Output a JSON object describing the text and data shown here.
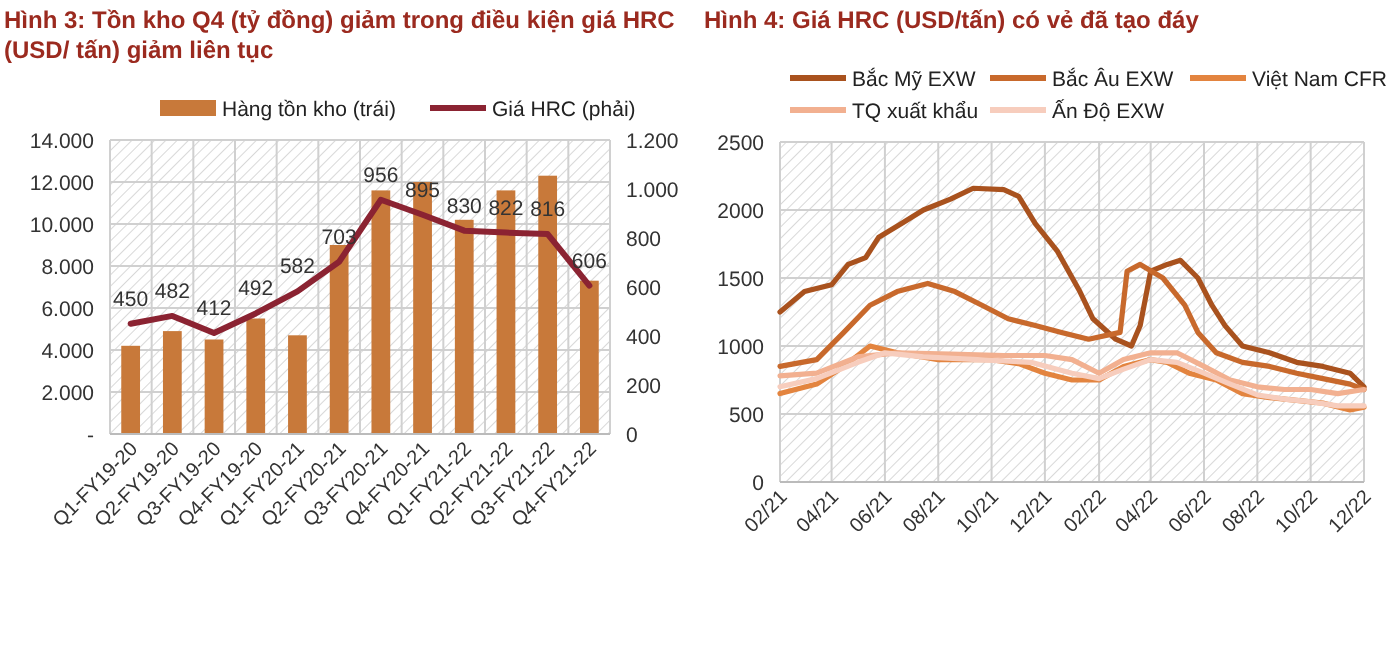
{
  "chart_data": [
    {
      "type": "bar",
      "title": "Hình 3: Tồn kho Q4 (tỷ đồng) giảm trong điều kiện giá HRC (USD/ tấn) giảm liên tục",
      "categories": [
        "Q1-FY19-20",
        "Q2-FY19-20",
        "Q3-FY19-20",
        "Q4-FY19-20",
        "Q1-FY20-21",
        "Q2-FY20-21",
        "Q3-FY20-21",
        "Q4-FY20-21",
        "Q1-FY21-22",
        "Q2-FY21-22",
        "Q3-FY21-22",
        "Q4-FY21-22"
      ],
      "series": [
        {
          "name": "Hàng tồn kho (trái)",
          "color": "#c8793a",
          "values": [
            4200,
            4900,
            4500,
            5500,
            4700,
            9000,
            11600,
            12000,
            10200,
            11600,
            12300,
            7300
          ]
        },
        {
          "name": "Giá HRC (phải)",
          "type": "line",
          "axis": "y2",
          "color": "#8b2332",
          "values": [
            450,
            482,
            412,
            492,
            582,
            703,
            956,
            895,
            830,
            822,
            816,
            606
          ],
          "value_labels": [
            "450",
            "482",
            "412",
            "492",
            "582",
            "703",
            "956",
            "895",
            "830",
            "822",
            "816",
            "606"
          ]
        }
      ],
      "ylim": [
        0,
        14000
      ],
      "yticks": [
        {
          "value": 0,
          "label": "-"
        },
        {
          "value": 2000,
          "label": "2.000"
        },
        {
          "value": 4000,
          "label": "4.000"
        },
        {
          "value": 6000,
          "label": "6.000"
        },
        {
          "value": 8000,
          "label": "8.000"
        },
        {
          "value": 10000,
          "label": "10.000"
        },
        {
          "value": 12000,
          "label": "12.000"
        },
        {
          "value": 14000,
          "label": "14.000"
        }
      ],
      "y2lim": [
        0,
        1200
      ],
      "y2ticks": [
        0,
        200,
        400,
        600,
        800,
        {
          "value": 1000,
          "label": "1.000"
        },
        {
          "value": 1200,
          "label": "1.200"
        }
      ],
      "grid": true,
      "legend": "top"
    },
    {
      "type": "line",
      "title": "Hình 4: Giá HRC (USD/tấn) có vẻ đã tạo đáy",
      "xlim": [
        "2021-02",
        "2022-12"
      ],
      "xticks": [
        {
          "value": "2021-02",
          "label": "02/21"
        },
        {
          "value": "2021-04",
          "label": "04/21"
        },
        {
          "value": "2021-06",
          "label": "06/21"
        },
        {
          "value": "2021-08",
          "label": "08/21"
        },
        {
          "value": "2021-10",
          "label": "10/21"
        },
        {
          "value": "2021-12",
          "label": "12/21"
        },
        {
          "value": "2022-02",
          "label": "02/22"
        },
        {
          "value": "2022-04",
          "label": "04/22"
        },
        {
          "value": "2022-06",
          "label": "06/22"
        },
        {
          "value": "2022-08",
          "label": "08/22"
        },
        {
          "value": "2022-10",
          "label": "10/22"
        },
        {
          "value": "2022-12",
          "label": "12/22"
        }
      ],
      "ylim": [
        0,
        2500
      ],
      "yticks": [
        0,
        500,
        1000,
        1500,
        2000,
        2500
      ],
      "grid": true,
      "legend": "top",
      "series": [
        {
          "name": "Bắc Mỹ EXW",
          "color": "#a9521e",
          "x": [
            "2021-02-01",
            "2021-03-01",
            "2021-04-01",
            "2021-04-20",
            "2021-05-10",
            "2021-05-25",
            "2021-06-20",
            "2021-07-15",
            "2021-08-15",
            "2021-09-10",
            "2021-10-15",
            "2021-11-01",
            "2021-11-20",
            "2021-12-15",
            "2022-01-10",
            "2022-01-25",
            "2022-02-20",
            "2022-03-10",
            "2022-03-20",
            "2022-04-01",
            "2022-04-20",
            "2022-05-05",
            "2022-05-25",
            "2022-06-10",
            "2022-06-25",
            "2022-07-15",
            "2022-08-15",
            "2022-09-15",
            "2022-10-15",
            "2022-11-15",
            "2022-12-01"
          ],
          "values": [
            1250,
            1400,
            1450,
            1600,
            1650,
            1800,
            1900,
            2000,
            2080,
            2160,
            2150,
            2100,
            1900,
            1700,
            1400,
            1200,
            1050,
            1000,
            1150,
            1550,
            1600,
            1630,
            1500,
            1300,
            1150,
            1000,
            950,
            880,
            850,
            800,
            700
          ]
        },
        {
          "name": "Bắc Âu EXW",
          "color": "#c8692c",
          "x": [
            "2021-02-01",
            "2021-03-15",
            "2021-04-15",
            "2021-05-15",
            "2021-06-15",
            "2021-07-20",
            "2021-08-20",
            "2021-09-20",
            "2021-10-20",
            "2021-11-20",
            "2021-12-20",
            "2022-01-20",
            "2022-02-25",
            "2022-03-05",
            "2022-03-20",
            "2022-04-15",
            "2022-05-10",
            "2022-05-25",
            "2022-06-15",
            "2022-07-15",
            "2022-08-15",
            "2022-09-15",
            "2022-10-15",
            "2022-11-15",
            "2022-12-01"
          ],
          "values": [
            850,
            900,
            1100,
            1300,
            1400,
            1460,
            1400,
            1300,
            1200,
            1150,
            1100,
            1050,
            1100,
            1550,
            1600,
            1500,
            1300,
            1100,
            950,
            880,
            850,
            800,
            760,
            720,
            680
          ]
        },
        {
          "name": "Việt Nam CFR",
          "color": "#e3843f",
          "x": [
            "2021-02-01",
            "2021-03-15",
            "2021-04-15",
            "2021-05-15",
            "2021-06-15",
            "2021-08-01",
            "2021-10-01",
            "2021-11-01",
            "2021-12-01",
            "2022-01-01",
            "2022-02-01",
            "2022-03-01",
            "2022-04-01",
            "2022-04-20",
            "2022-05-15",
            "2022-06-15",
            "2022-07-15",
            "2022-08-15",
            "2022-09-15",
            "2022-10-15",
            "2022-11-15",
            "2022-12-01"
          ],
          "values": [
            650,
            720,
            850,
            1000,
            950,
            900,
            900,
            870,
            800,
            750,
            750,
            850,
            900,
            880,
            800,
            750,
            650,
            620,
            600,
            580,
            530,
            550
          ]
        },
        {
          "name": "TQ xuất khẩu",
          "color": "#f2b090",
          "x": [
            "2021-02-01",
            "2021-03-15",
            "2021-05-01",
            "2021-06-15",
            "2021-08-15",
            "2021-10-15",
            "2021-12-01",
            "2022-01-01",
            "2022-02-01",
            "2022-03-01",
            "2022-04-01",
            "2022-05-01",
            "2022-06-01",
            "2022-07-01",
            "2022-08-01",
            "2022-09-01",
            "2022-10-01",
            "2022-11-01",
            "2022-12-01"
          ],
          "values": [
            780,
            800,
            920,
            950,
            940,
            930,
            930,
            900,
            800,
            900,
            950,
            950,
            850,
            750,
            700,
            680,
            680,
            650,
            680
          ]
        },
        {
          "name": "Ấn Độ EXW",
          "color": "#f7cdbd",
          "x": [
            "2021-02-01",
            "2021-03-15",
            "2021-05-01",
            "2021-06-01",
            "2021-07-15",
            "2021-09-15",
            "2021-11-15",
            "2022-01-01",
            "2022-02-01",
            "2022-03-01",
            "2022-04-01",
            "2022-05-01",
            "2022-06-01",
            "2022-07-01",
            "2022-08-01",
            "2022-09-01",
            "2022-10-01",
            "2022-11-01",
            "2022-12-01"
          ],
          "values": [
            700,
            760,
            880,
            950,
            920,
            900,
            880,
            800,
            760,
            830,
            900,
            880,
            800,
            720,
            640,
            610,
            590,
            560,
            560
          ]
        }
      ]
    }
  ]
}
